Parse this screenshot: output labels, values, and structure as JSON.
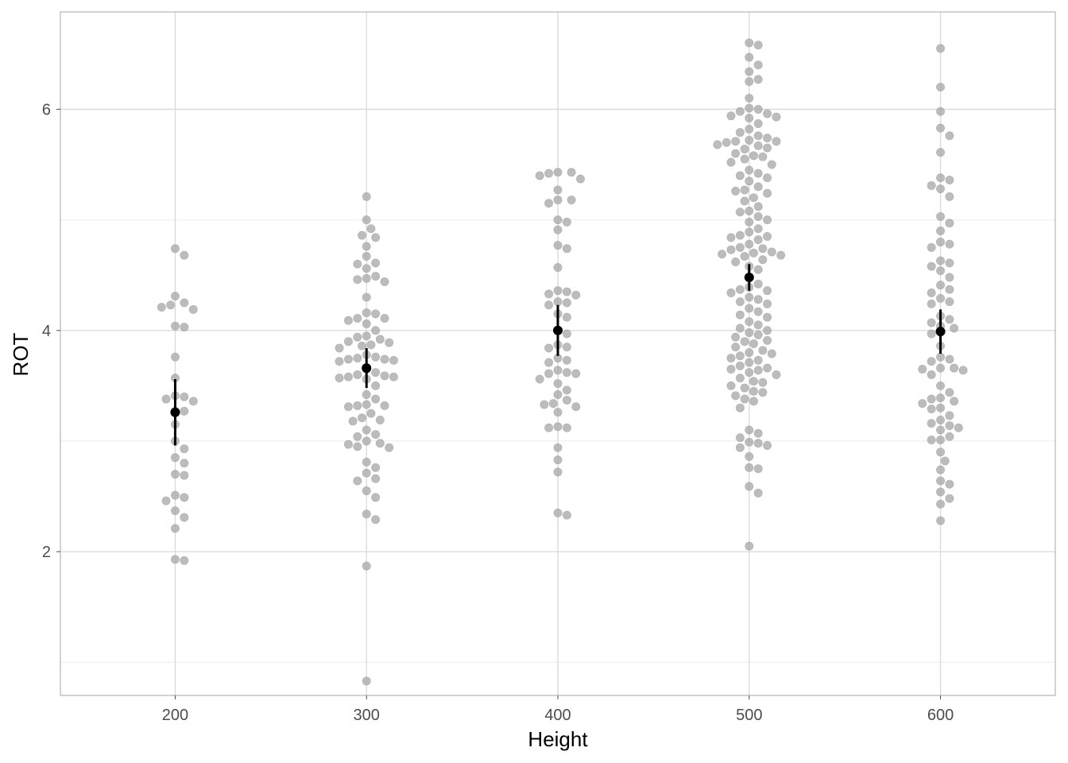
{
  "chart_data": {
    "type": "scatter",
    "subtype": "beeswarm with mean and error bars",
    "title": "",
    "xlabel": "Height",
    "ylabel": "ROT",
    "xlim": [
      140,
      660
    ],
    "ylim": [
      0.7,
      6.88
    ],
    "x_ticks": [
      200,
      300,
      400,
      500,
      600
    ],
    "y_ticks": [
      2,
      4,
      6
    ],
    "y_minor_ticks": [
      1,
      3,
      5
    ],
    "grid": true,
    "legend": "none",
    "colors": {
      "points": "#a9a9a9",
      "mean": "#000000",
      "grid_major": "#d9d9d9",
      "grid_minor": "#ececec",
      "panel_border": "#b3b3b3"
    },
    "groups": [
      {
        "x": 200,
        "mean": 3.26,
        "err_low": 2.96,
        "err_high": 3.56,
        "values": [
          4.74,
          4.68,
          4.31,
          4.25,
          4.23,
          4.21,
          4.19,
          4.04,
          4.03,
          3.76,
          3.57,
          3.41,
          3.4,
          3.38,
          3.36,
          3.27,
          3.27,
          3.15,
          3.0,
          2.93,
          2.85,
          2.8,
          2.7,
          2.69,
          2.51,
          2.49,
          2.46,
          2.37,
          2.31,
          2.21,
          1.92,
          1.93
        ]
      },
      {
        "x": 300,
        "mean": 3.66,
        "err_low": 3.48,
        "err_high": 3.84,
        "values": [
          5.21,
          5.0,
          4.92,
          4.86,
          4.84,
          4.76,
          4.67,
          4.61,
          4.6,
          4.56,
          4.49,
          4.47,
          4.46,
          4.44,
          4.3,
          4.16,
          4.15,
          4.11,
          4.11,
          4.09,
          4.06,
          4.0,
          3.95,
          3.94,
          3.92,
          3.9,
          3.89,
          3.87,
          3.86,
          3.84,
          3.78,
          3.76,
          3.75,
          3.74,
          3.74,
          3.73,
          3.72,
          3.65,
          3.62,
          3.6,
          3.59,
          3.58,
          3.57,
          3.58,
          3.56,
          3.5,
          3.42,
          3.38,
          3.33,
          3.32,
          3.32,
          3.31,
          3.25,
          3.21,
          3.19,
          3.18,
          3.1,
          3.06,
          3.04,
          3.0,
          2.98,
          2.97,
          2.95,
          2.94,
          2.81,
          2.76,
          2.71,
          2.66,
          2.64,
          2.55,
          2.49,
          2.34,
          2.29,
          1.87,
          0.83
        ]
      },
      {
        "x": 400,
        "mean": 4.0,
        "err_low": 3.77,
        "err_high": 4.23,
        "values": [
          5.43,
          5.43,
          5.42,
          5.4,
          5.37,
          5.27,
          5.18,
          5.18,
          5.15,
          5.0,
          4.98,
          4.91,
          4.77,
          4.74,
          4.57,
          4.36,
          4.35,
          4.33,
          4.32,
          4.26,
          4.25,
          4.23,
          4.15,
          4.12,
          4.0,
          3.97,
          3.87,
          3.85,
          3.84,
          3.75,
          3.73,
          3.71,
          3.64,
          3.62,
          3.61,
          3.61,
          3.56,
          3.52,
          3.46,
          3.42,
          3.37,
          3.34,
          3.33,
          3.31,
          3.26,
          3.13,
          3.12,
          3.12,
          2.94,
          2.83,
          2.72,
          2.35,
          2.33
        ]
      },
      {
        "x": 500,
        "mean": 4.48,
        "err_low": 4.36,
        "err_high": 4.6,
        "values": [
          6.6,
          6.58,
          6.47,
          6.4,
          6.34,
          6.27,
          6.25,
          6.1,
          6.01,
          6.0,
          5.98,
          5.96,
          5.94,
          5.93,
          5.92,
          5.87,
          5.82,
          5.79,
          5.76,
          5.74,
          5.72,
          5.71,
          5.71,
          5.7,
          5.68,
          5.67,
          5.65,
          5.64,
          5.6,
          5.58,
          5.57,
          5.55,
          5.52,
          5.5,
          5.45,
          5.42,
          5.4,
          5.38,
          5.35,
          5.3,
          5.27,
          5.26,
          5.24,
          5.2,
          5.17,
          5.12,
          5.08,
          5.07,
          5.03,
          5.0,
          4.98,
          4.92,
          4.89,
          4.86,
          4.85,
          4.84,
          4.82,
          4.78,
          4.75,
          4.74,
          4.73,
          4.71,
          4.7,
          4.69,
          4.68,
          4.67,
          4.64,
          4.62,
          4.58,
          4.55,
          4.48,
          4.42,
          4.39,
          4.37,
          4.36,
          4.34,
          4.3,
          4.28,
          4.26,
          4.24,
          4.2,
          4.17,
          4.14,
          4.12,
          4.08,
          4.05,
          4.02,
          4.0,
          3.98,
          3.96,
          3.94,
          3.91,
          3.9,
          3.88,
          3.85,
          3.82,
          3.8,
          3.79,
          3.77,
          3.75,
          3.73,
          3.71,
          3.68,
          3.66,
          3.65,
          3.64,
          3.62,
          3.6,
          3.57,
          3.54,
          3.53,
          3.5,
          3.48,
          3.45,
          3.44,
          3.41,
          3.38,
          3.36,
          3.3,
          3.1,
          3.07,
          3.03,
          2.99,
          2.98,
          2.96,
          2.94,
          2.86,
          2.76,
          2.75,
          2.59,
          2.53,
          2.05
        ]
      },
      {
        "x": 600,
        "mean": 3.99,
        "err_low": 3.79,
        "err_high": 4.19,
        "values": [
          6.55,
          6.2,
          5.98,
          5.83,
          5.76,
          5.61,
          5.38,
          5.36,
          5.31,
          5.28,
          5.21,
          5.03,
          4.97,
          4.9,
          4.8,
          4.78,
          4.75,
          4.63,
          4.61,
          4.58,
          4.54,
          4.48,
          4.41,
          4.37,
          4.34,
          4.29,
          4.26,
          4.24,
          4.13,
          4.1,
          4.07,
          4.04,
          4.02,
          3.97,
          3.86,
          3.76,
          3.74,
          3.72,
          3.66,
          3.66,
          3.65,
          3.64,
          3.6,
          3.5,
          3.44,
          3.39,
          3.38,
          3.36,
          3.34,
          3.3,
          3.29,
          3.23,
          3.19,
          3.16,
          3.14,
          3.12,
          3.1,
          3.04,
          3.01,
          3.01,
          2.9,
          2.82,
          2.74,
          2.64,
          2.61,
          2.54,
          2.48,
          2.43,
          2.28
        ]
      }
    ]
  }
}
